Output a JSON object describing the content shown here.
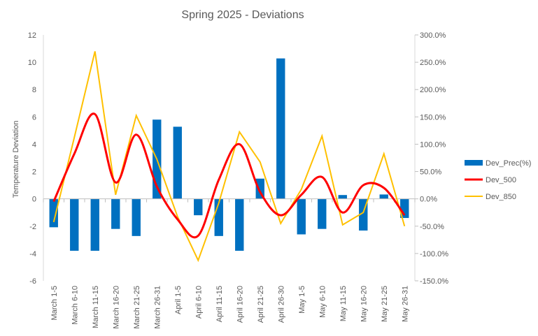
{
  "chart_data": {
    "type": "bar",
    "title": "Spring 2025 - Deviations",
    "ylabel": "Temperature Deviation",
    "y2label": "",
    "xlabel": "",
    "ylim": [
      -6,
      12
    ],
    "y_ticks": [
      -6,
      -4,
      -2,
      0,
      2,
      4,
      6,
      8,
      10,
      12
    ],
    "y2lim": [
      -150,
      300
    ],
    "y2_ticks": [
      "-150.0%",
      "-100.0%",
      "-50.0%",
      "0.0%",
      "50.0%",
      "100.0%",
      "150.0%",
      "200.0%",
      "250.0%",
      "300.0%"
    ],
    "y2_tick_values": [
      -150,
      -100,
      -50,
      0,
      50,
      100,
      150,
      200,
      250,
      300
    ],
    "grid": false,
    "legend_position": "right",
    "categories": [
      "March 1-5",
      "March 6-10",
      "March 11-15",
      "March 16-20",
      "March 21-25",
      "March 26-31",
      "April 1-5",
      "April 6-10",
      "April 11-15",
      "April 16-20",
      "April 21-25",
      "April 26-30",
      "May 1-5",
      "May 6-10",
      "May 11-15",
      "May 16-20",
      "May 21-25",
      "May 26-31"
    ],
    "series": [
      {
        "name": "Dev_Prec(%)",
        "type": "bar",
        "axis": "right",
        "color": "#0070C0",
        "values": [
          -52,
          -95,
          -95,
          -55,
          -68,
          145,
          132,
          -30,
          -68,
          -95,
          37,
          257,
          -65,
          -55,
          7,
          -58,
          8,
          -35
        ]
      },
      {
        "name": "Dev_500",
        "type": "smooth-line",
        "axis": "left",
        "color": "#FF0000",
        "values": [
          -0.2,
          3.3,
          6.2,
          1.2,
          4.7,
          0.9,
          -1.5,
          -2.7,
          1.4,
          4.0,
          0.5,
          -1.2,
          0.3,
          1.6,
          -1.0,
          1.0,
          0.8,
          -1.2
        ]
      },
      {
        "name": "Dev_850",
        "type": "line",
        "axis": "left",
        "color": "#FFC000",
        "values": [
          -1.7,
          4.5,
          10.8,
          0.3,
          6.1,
          2.9,
          -1.3,
          -4.5,
          -0.3,
          4.9,
          2.7,
          -1.8,
          0.7,
          4.6,
          -1.9,
          -1.0,
          3.3,
          -2.0
        ]
      }
    ]
  }
}
